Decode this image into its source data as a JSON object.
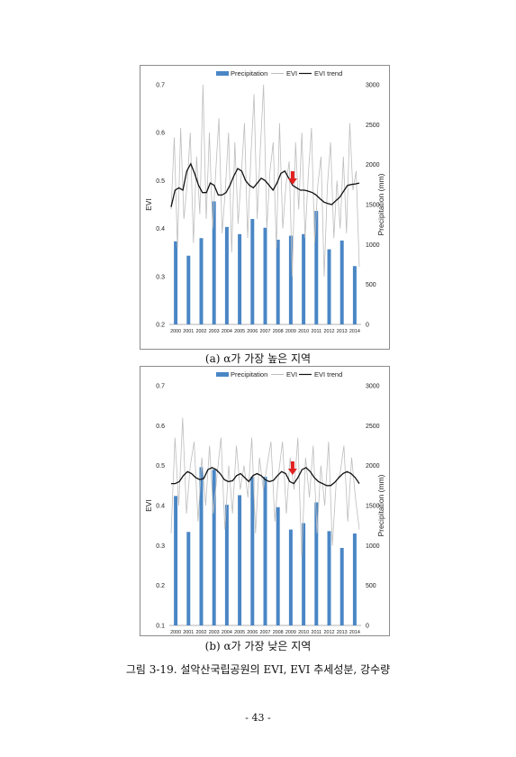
{
  "chart_data": [
    {
      "type": "bar",
      "panel": "a",
      "legend": [
        "Precipitation",
        "EVI",
        "EVI trend"
      ],
      "legend_position": "top",
      "ylabel_left": "EVI",
      "ylabel_right": "Precipitation (mm)",
      "years": [
        "2000",
        "2001",
        "2002",
        "2003",
        "2004",
        "2005",
        "2006",
        "2007",
        "2008",
        "2009",
        "2010",
        "2011",
        "2012",
        "2013",
        "2014"
      ],
      "ylim_left": [
        0.2,
        0.7
      ],
      "left_ticks": [
        "0.2",
        "0.3",
        "0.4",
        "0.5",
        "0.6",
        "0.7"
      ],
      "ylim_right": [
        0,
        3000
      ],
      "right_ticks": [
        "0",
        "500",
        "1000",
        "1500",
        "2000",
        "2500",
        "3000"
      ],
      "precipitation": [
        1040,
        860,
        1080,
        1540,
        1220,
        1130,
        1320,
        1210,
        1060,
        1110,
        1130,
        1420,
        940,
        1050,
        730
      ],
      "evi": [
        0.44,
        0.59,
        0.36,
        0.61,
        0.42,
        0.49,
        0.6,
        0.37,
        0.55,
        0.43,
        0.7,
        0.42,
        0.6,
        0.4,
        0.52,
        0.63,
        0.39,
        0.48,
        0.6,
        0.35,
        0.58,
        0.41,
        0.51,
        0.62,
        0.38,
        0.55,
        0.68,
        0.42,
        0.57,
        0.7,
        0.4,
        0.52,
        0.58,
        0.36,
        0.62,
        0.4,
        0.49,
        0.54,
        0.3,
        0.58,
        0.44,
        0.6,
        0.38,
        0.51,
        0.61,
        0.37,
        0.49,
        0.55,
        0.3,
        0.49,
        0.58,
        0.38,
        0.5,
        0.4,
        0.55,
        0.39,
        0.62,
        0.48,
        0.52,
        0.32
      ],
      "evi_trend": [
        0.445,
        0.48,
        0.485,
        0.48,
        0.52,
        0.535,
        0.515,
        0.49,
        0.475,
        0.475,
        0.495,
        0.49,
        0.47,
        0.47,
        0.475,
        0.49,
        0.51,
        0.525,
        0.52,
        0.5,
        0.49,
        0.485,
        0.495,
        0.505,
        0.5,
        0.49,
        0.48,
        0.495,
        0.515,
        0.52,
        0.505,
        0.49,
        0.485,
        0.48,
        0.48,
        0.478,
        0.475,
        0.47,
        0.462,
        0.455,
        0.452,
        0.45,
        0.458,
        0.465,
        0.478,
        0.49,
        0.492,
        0.493,
        0.495
      ],
      "arrow_year": 2009,
      "caption": "(a) α가 가장 높은 지역"
    },
    {
      "type": "bar",
      "panel": "b",
      "legend": [
        "Precipitation",
        "EVI",
        "EVI trend"
      ],
      "legend_position": "top",
      "ylabel_left": "EVI",
      "ylabel_right": "Precipitation (mm)",
      "years": [
        "2000",
        "2001",
        "2002",
        "2003",
        "2004",
        "2005",
        "2006",
        "2007",
        "2008",
        "2009",
        "2010",
        "2011",
        "2012",
        "2013",
        "2014"
      ],
      "ylim_left": [
        0.1,
        0.7
      ],
      "left_ticks": [
        "0.1",
        "0.2",
        "0.3",
        "0.4",
        "0.5",
        "0.6",
        "0.7"
      ],
      "ylim_right": [
        0,
        3000
      ],
      "right_ticks": [
        "0",
        "500",
        "1000",
        "1500",
        "2000",
        "2500",
        "3000"
      ],
      "precipitation": [
        1620,
        1170,
        1980,
        1950,
        1510,
        1630,
        1860,
        1860,
        1480,
        1200,
        1280,
        1540,
        1180,
        970,
        1150
      ],
      "evi": [
        0.33,
        0.57,
        0.4,
        0.62,
        0.38,
        0.5,
        0.56,
        0.36,
        0.52,
        0.4,
        0.55,
        0.38,
        0.48,
        0.57,
        0.34,
        0.5,
        0.38,
        0.55,
        0.44,
        0.5,
        0.42,
        0.57,
        0.33,
        0.52,
        0.44,
        0.5,
        0.56,
        0.36,
        0.48,
        0.56,
        0.38,
        0.52,
        0.44,
        0.57,
        0.27,
        0.52,
        0.42,
        0.55,
        0.33,
        0.5,
        0.4,
        0.56,
        0.3,
        0.46,
        0.48,
        0.55,
        0.36,
        0.52,
        0.42,
        0.34
      ],
      "evi_trend": [
        0.455,
        0.455,
        0.46,
        0.475,
        0.485,
        0.48,
        0.47,
        0.465,
        0.468,
        0.49,
        0.495,
        0.49,
        0.48,
        0.465,
        0.46,
        0.462,
        0.475,
        0.48,
        0.47,
        0.46,
        0.475,
        0.48,
        0.475,
        0.465,
        0.46,
        0.463,
        0.475,
        0.485,
        0.48,
        0.46,
        0.455,
        0.47,
        0.49,
        0.495,
        0.485,
        0.47,
        0.46,
        0.455,
        0.45,
        0.45,
        0.458,
        0.47,
        0.48,
        0.485,
        0.48,
        0.47,
        0.455
      ],
      "arrow_year": 2009,
      "caption": "(b) α가 가장 낮은 지역"
    }
  ],
  "figure_caption": "그림 3-19. 설악산국립공원의 EVI, EVI 추세성분, 강수량",
  "page_number": "- 43 -",
  "colors": {
    "bar": "#4a86c5",
    "evi": "#bdbdbd",
    "trend": "#111111",
    "arrow": "#e0201f",
    "axis": "#9a9a9a"
  }
}
